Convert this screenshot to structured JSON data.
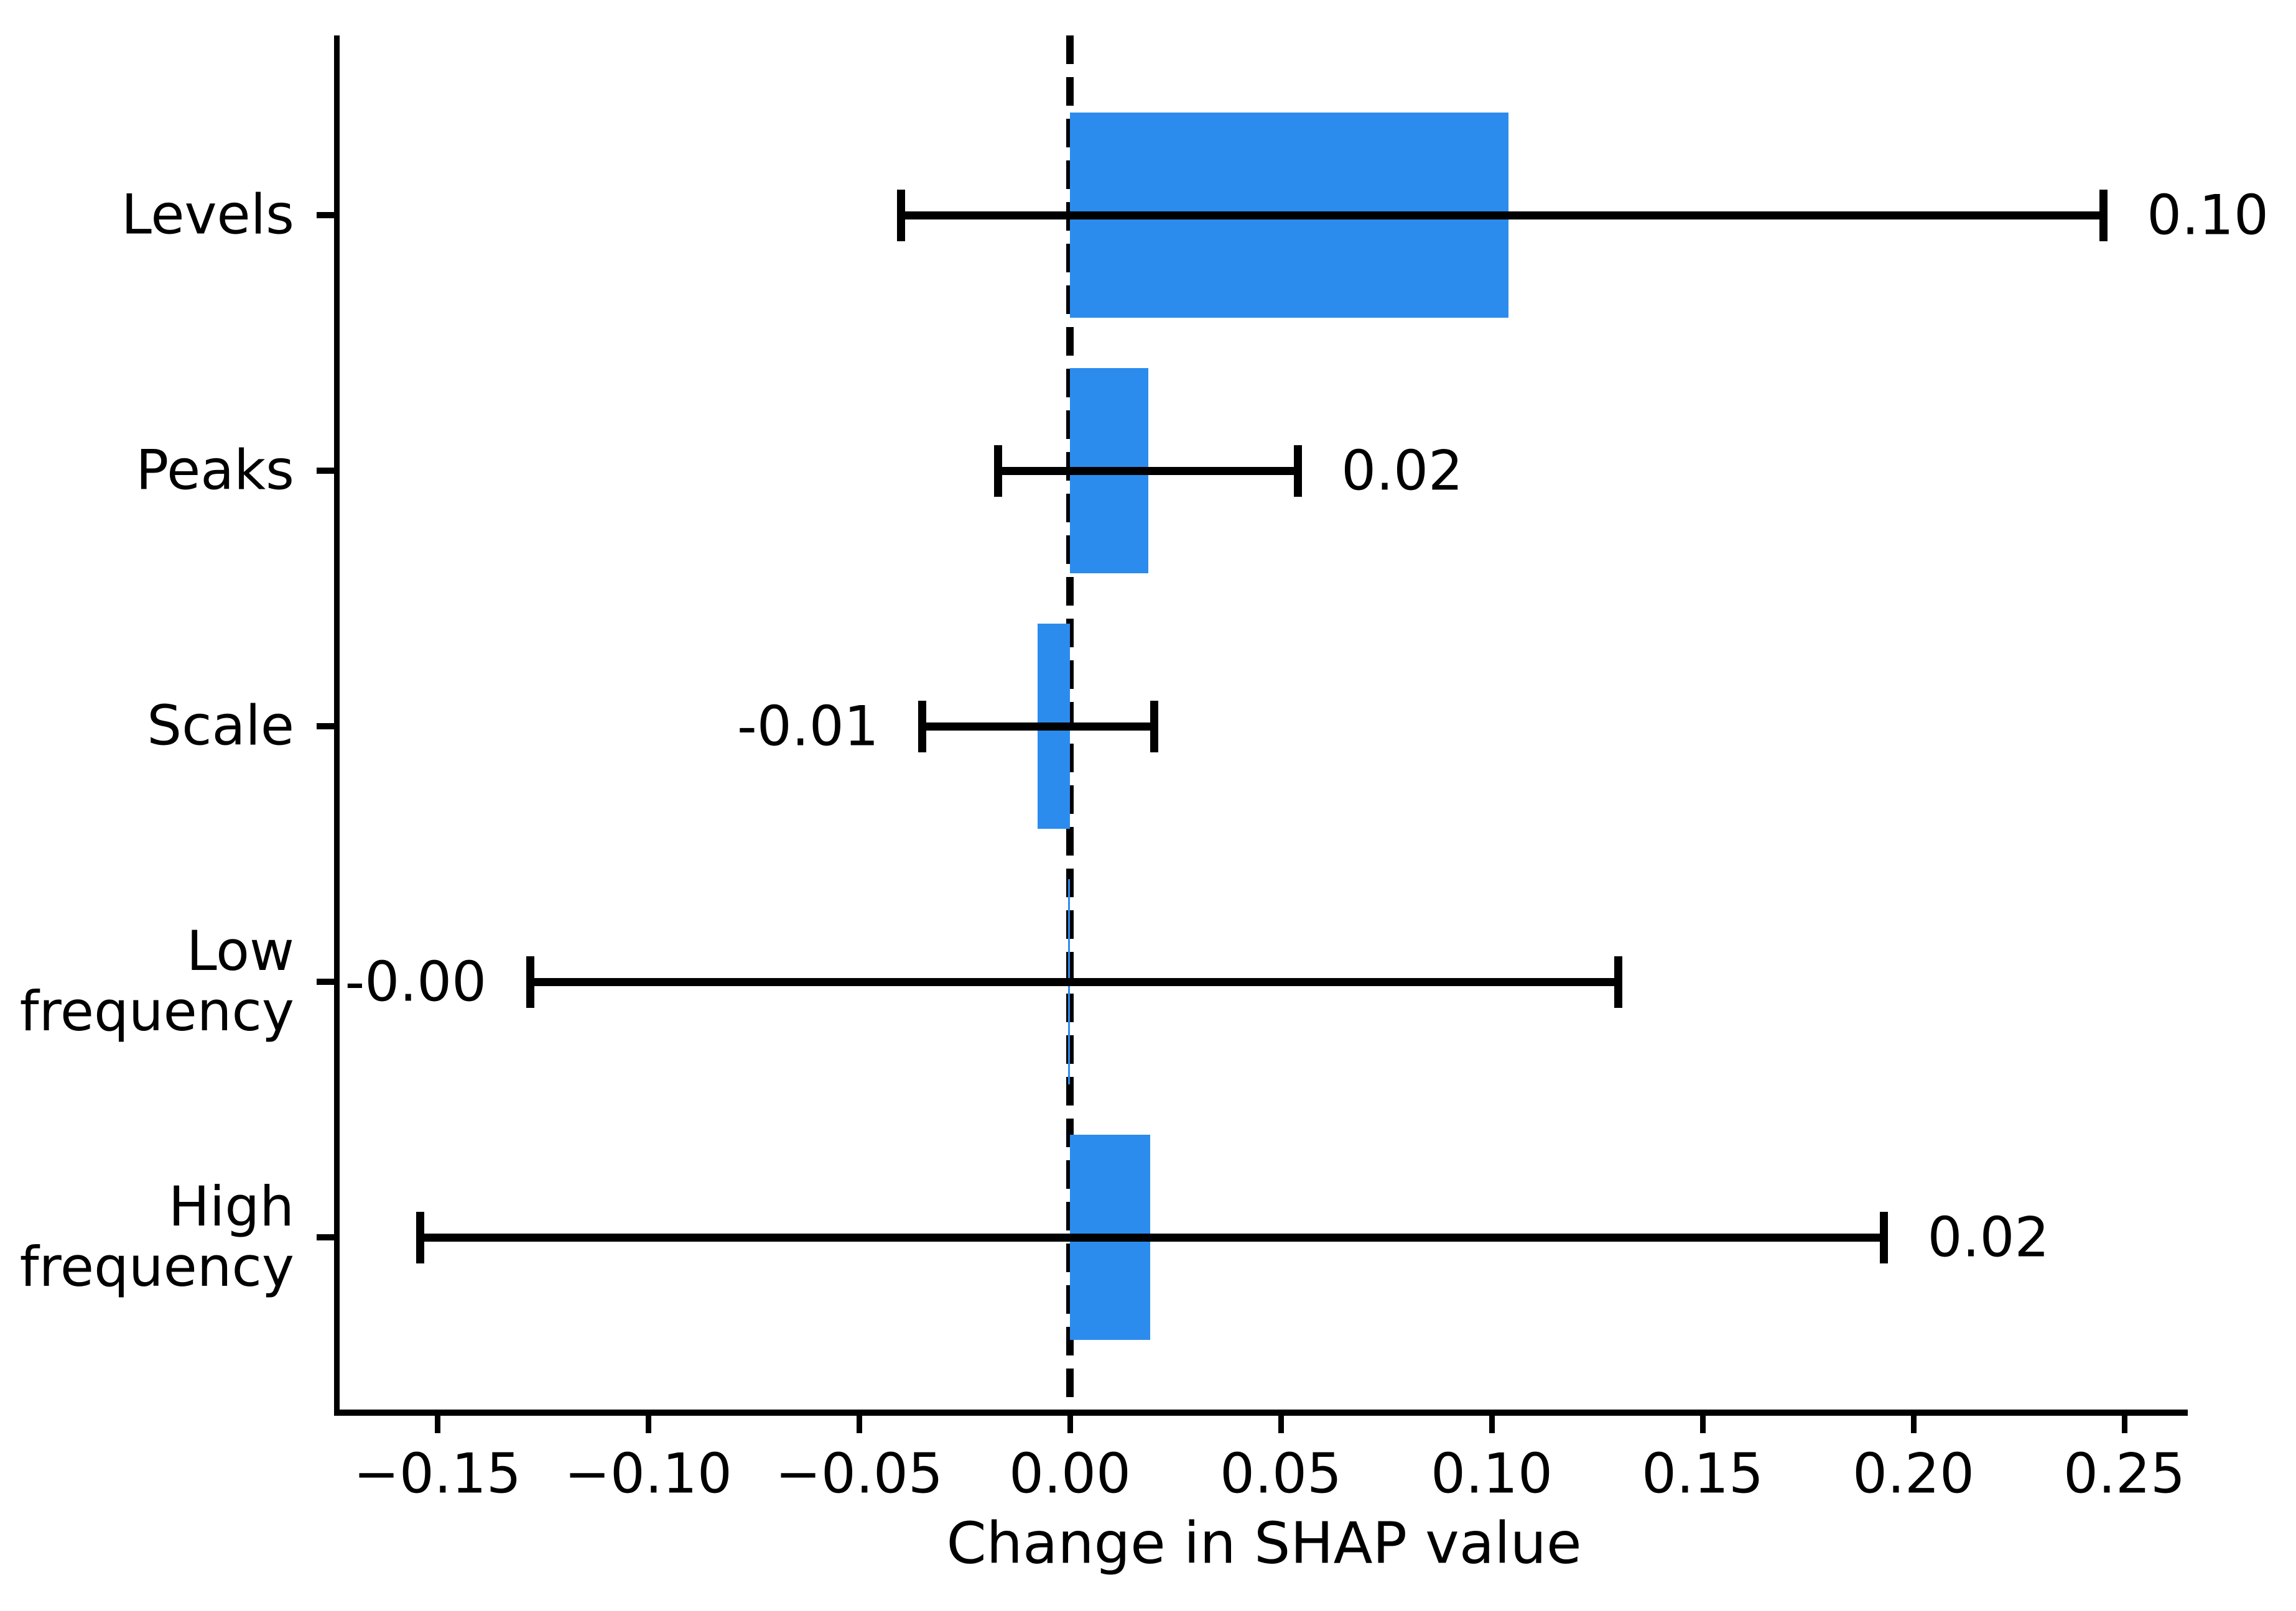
{
  "chart_data": {
    "type": "bar",
    "orientation": "horizontal",
    "title": "",
    "xlabel": "Change in SHAP value",
    "ylabel": "",
    "xlim": [
      -0.174,
      0.265
    ],
    "grid": false,
    "legend": false,
    "bar_color": "#2b8cee",
    "axis_color": "#000000",
    "zero_line": {
      "value": 0.0,
      "style": "dashed",
      "color": "#000000"
    },
    "x_ticks": [
      -0.15,
      -0.1,
      -0.05,
      0.0,
      0.05,
      0.1,
      0.15,
      0.2,
      0.25
    ],
    "x_tick_labels": [
      "−0.15",
      "−0.10",
      "−0.05",
      "0.00",
      "0.05",
      "0.10",
      "0.15",
      "0.20",
      "0.25"
    ],
    "categories": [
      "Levels",
      "Peaks",
      "Scale",
      "Low frequency",
      "High frequency"
    ],
    "rows": [
      {
        "category": "Levels",
        "category_lines": [
          "Levels"
        ],
        "value": 0.104,
        "error_low": -0.04,
        "error_high": 0.245,
        "value_label": "0.10",
        "value_label_side": "right"
      },
      {
        "category": "Peaks",
        "category_lines": [
          "Peaks"
        ],
        "value": 0.0186,
        "error_low": -0.017,
        "error_high": 0.054,
        "value_label": "0.02",
        "value_label_side": "right"
      },
      {
        "category": "Scale",
        "category_lines": [
          "Scale"
        ],
        "value": -0.0077,
        "error_low": -0.035,
        "error_high": 0.02,
        "value_label": "-0.01",
        "value_label_side": "left"
      },
      {
        "category": "Low frequency",
        "category_lines": [
          "Low",
          "frequency"
        ],
        "value": -0.0004,
        "error_low": -0.128,
        "error_high": 0.13,
        "value_label": "-0.00",
        "value_label_side": "left"
      },
      {
        "category": "High frequency",
        "category_lines": [
          "High",
          "frequency"
        ],
        "value": 0.019,
        "error_low": -0.154,
        "error_high": 0.193,
        "value_label": "0.02",
        "value_label_side": "right"
      }
    ]
  }
}
